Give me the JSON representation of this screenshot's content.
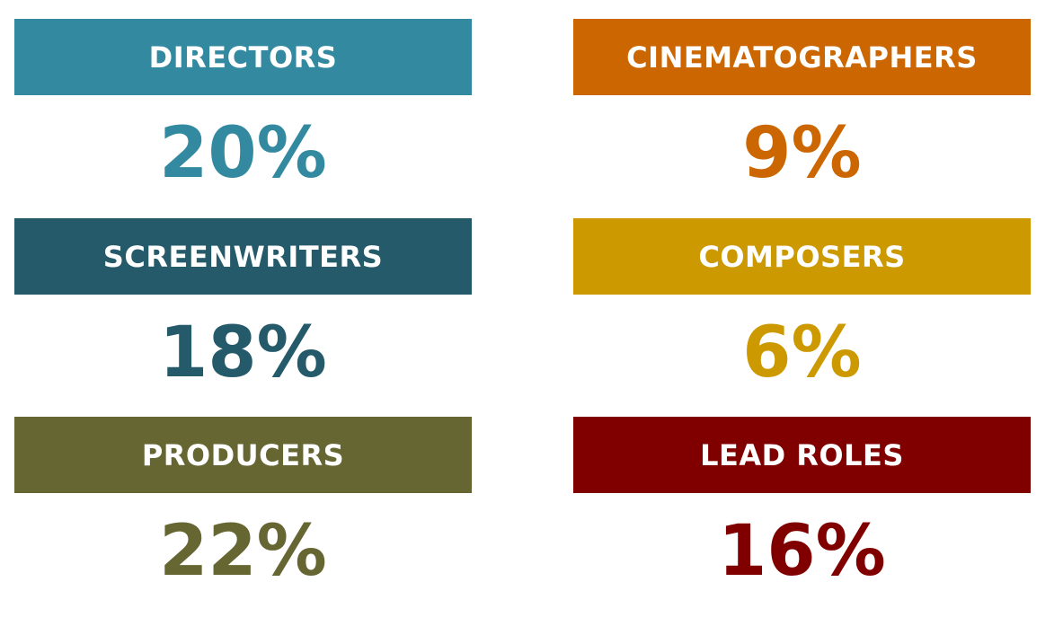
{
  "cards": [
    {
      "label": "DIRECTORS",
      "value": "20%",
      "color": "#338aa0"
    },
    {
      "label": "CINEMATOGRAPHERS",
      "value": "9%",
      "color": "#cc6600"
    },
    {
      "label": "SCREENWRITERS",
      "value": "18%",
      "color": "#245a6a"
    },
    {
      "label": "COMPOSERS",
      "value": "6%",
      "color": "#cc9900"
    },
    {
      "label": "PRODUCERS",
      "value": "22%",
      "color": "#666633"
    },
    {
      "label": "LEAD ROLES",
      "value": "16%",
      "color": "#800000"
    }
  ]
}
